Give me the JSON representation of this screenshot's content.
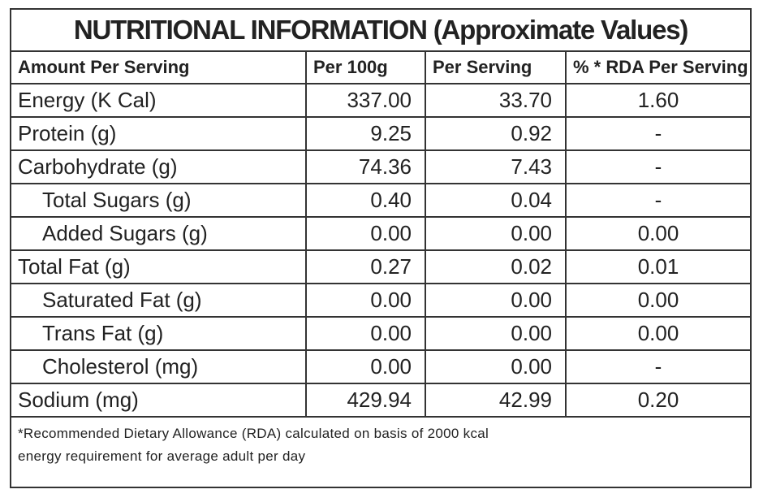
{
  "title": "NUTRITIONAL INFORMATION (Approximate Values)",
  "table": {
    "header": [
      "Amount Per Serving",
      "Per 100g",
      "Per Serving",
      "% * RDA Per Serving"
    ],
    "rows": [
      [
        "Energy (K Cal)",
        "337.00",
        "33.70",
        "1.60"
      ],
      [
        "Protein (g)",
        "9.25",
        "0.92",
        "-"
      ],
      [
        "Carbohydrate (g)",
        "74.36",
        "7.43",
        "-"
      ],
      [
        "Total Sugars (g)",
        "0.40",
        "0.04",
        "-"
      ],
      [
        "Added Sugars (g)",
        "0.00",
        "0.00",
        "0.00"
      ],
      [
        "Total Fat (g)",
        "0.27",
        "0.02",
        "0.01"
      ],
      [
        "Saturated Fat (g)",
        "0.00",
        "0.00",
        "0.00"
      ],
      [
        "Trans Fat (g)",
        "0.00",
        "0.00",
        "0.00"
      ],
      [
        "Cholesterol (mg)",
        "0.00",
        "0.00",
        "-"
      ],
      [
        "Sodium (mg)",
        "429.94",
        "42.99",
        "0.20"
      ]
    ]
  },
  "footnote": [
    "*Recommended Dietary Allowance (RDA) calculated on basis of 2000 kcal",
    "energy requirement for average adult per day"
  ]
}
